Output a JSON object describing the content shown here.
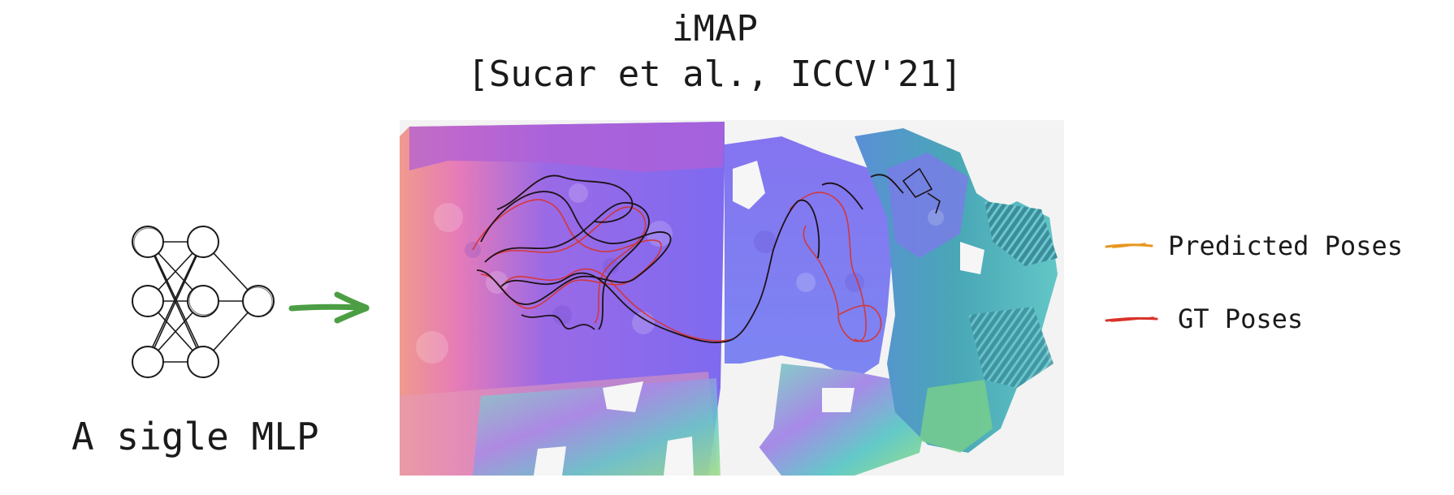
{
  "title": {
    "line1": "iMAP",
    "line2": "[Sucar et al., ICCV'21]"
  },
  "left_panel": {
    "caption": "A sigle MLP",
    "arrow_color": "#4c9e45",
    "network_icon": "mlp-network-icon"
  },
  "legend": {
    "items": [
      {
        "label": "Predicted Poses",
        "color": "#e8961e"
      },
      {
        "label": "GT Poses",
        "color": "#d9322a"
      }
    ]
  },
  "scene": {
    "description_icon": "reconstruction-normal-map-image"
  }
}
